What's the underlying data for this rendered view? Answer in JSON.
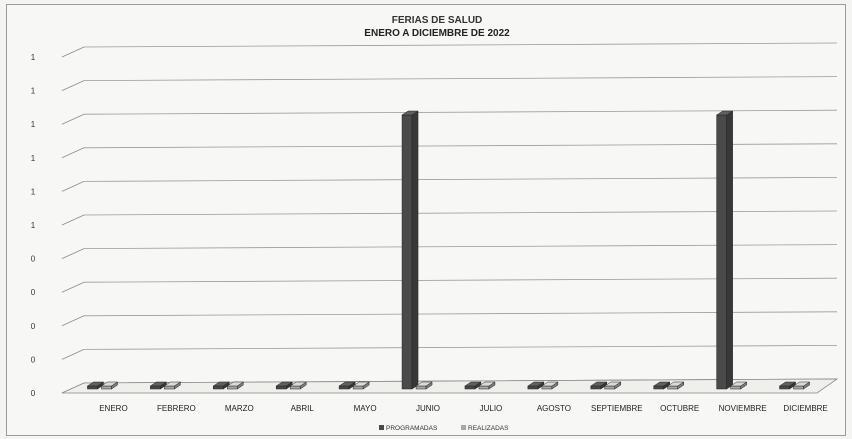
{
  "chart_data": {
    "type": "bar",
    "title": "FERIAS DE SALUD",
    "subtitle": "ENERO A DICIEMBRE DE 2022",
    "categories": [
      "ENERO",
      "FEBRERO",
      "MARZO",
      "ABRIL",
      "MAYO",
      "JUNIO",
      "JULIO",
      "AGOSTO",
      "SEPTIEMBRE",
      "OCTUBRE",
      "NOVIEMBRE",
      "DICIEMBRE"
    ],
    "y_tick_labels": [
      "0",
      "0",
      "0",
      "0",
      "0",
      "1",
      "1",
      "1",
      "1",
      "1",
      "1"
    ],
    "ylim": [
      0,
      1.2
    ],
    "series": [
      {
        "name": "PROGRAMADAS",
        "values": [
          0,
          0,
          0,
          0,
          0,
          1,
          0,
          0,
          0,
          0,
          1,
          0
        ],
        "color": "#4a4a4a"
      },
      {
        "name": "REALIZADAS",
        "values": [
          0,
          0,
          0,
          0,
          0,
          0,
          0,
          0,
          0,
          0,
          0,
          0
        ],
        "color": "#a8a8a8"
      }
    ],
    "grid": true,
    "legend_position": "bottom-center",
    "style": "3d-column"
  }
}
